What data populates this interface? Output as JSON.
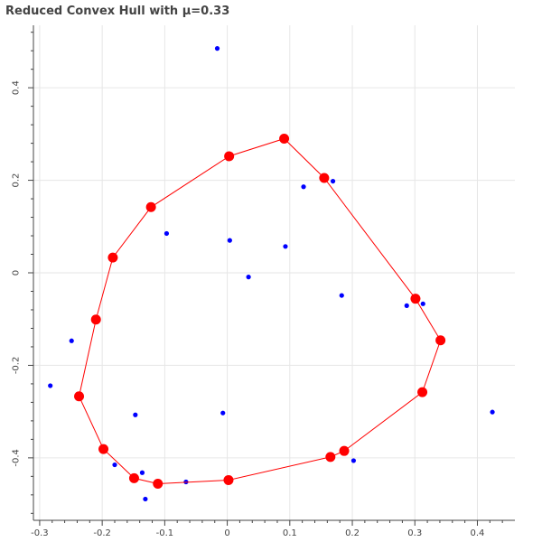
{
  "chart_data": {
    "type": "scatter",
    "title": "Reduced Convex Hull with μ=0.33",
    "xlabel": "",
    "ylabel": "",
    "xlim": [
      -0.31,
      0.46
    ],
    "ylim": [
      -0.535,
      0.535
    ],
    "grid": true,
    "x_ticks": [
      -0.3,
      -0.2,
      -0.1,
      0,
      0.1,
      0.2,
      0.3,
      0.4
    ],
    "y_ticks": [
      -0.4,
      -0.2,
      0,
      0.2,
      0.4
    ],
    "colors": {
      "points": "#0000ff",
      "hull": "#ff0000"
    },
    "points": [
      {
        "x": -0.016,
        "y": 0.485
      },
      {
        "x": 0.122,
        "y": 0.186
      },
      {
        "x": 0.169,
        "y": 0.198
      },
      {
        "x": -0.097,
        "y": 0.085
      },
      {
        "x": 0.004,
        "y": 0.07
      },
      {
        "x": 0.093,
        "y": 0.057
      },
      {
        "x": 0.034,
        "y": -0.009
      },
      {
        "x": 0.183,
        "y": -0.049
      },
      {
        "x": 0.287,
        "y": -0.071
      },
      {
        "x": 0.313,
        "y": -0.067
      },
      {
        "x": -0.249,
        "y": -0.147
      },
      {
        "x": -0.283,
        "y": -0.244
      },
      {
        "x": -0.147,
        "y": -0.307
      },
      {
        "x": -0.007,
        "y": -0.303
      },
      {
        "x": 0.424,
        "y": -0.301
      },
      {
        "x": -0.18,
        "y": -0.415
      },
      {
        "x": -0.136,
        "y": -0.432
      },
      {
        "x": 0.202,
        "y": -0.406
      },
      {
        "x": -0.066,
        "y": -0.452
      },
      {
        "x": -0.131,
        "y": -0.489
      }
    ],
    "hull": [
      {
        "x": 0.003,
        "y": 0.252
      },
      {
        "x": 0.091,
        "y": 0.29
      },
      {
        "x": 0.155,
        "y": 0.205
      },
      {
        "x": 0.301,
        "y": -0.056
      },
      {
        "x": 0.341,
        "y": -0.146
      },
      {
        "x": 0.312,
        "y": -0.258
      },
      {
        "x": 0.187,
        "y": -0.385
      },
      {
        "x": 0.165,
        "y": -0.398
      },
      {
        "x": 0.002,
        "y": -0.448
      },
      {
        "x": -0.111,
        "y": -0.456
      },
      {
        "x": -0.149,
        "y": -0.444
      },
      {
        "x": -0.198,
        "y": -0.381
      },
      {
        "x": -0.237,
        "y": -0.267
      },
      {
        "x": -0.21,
        "y": -0.101
      },
      {
        "x": -0.183,
        "y": 0.033
      },
      {
        "x": -0.122,
        "y": 0.142
      }
    ]
  }
}
